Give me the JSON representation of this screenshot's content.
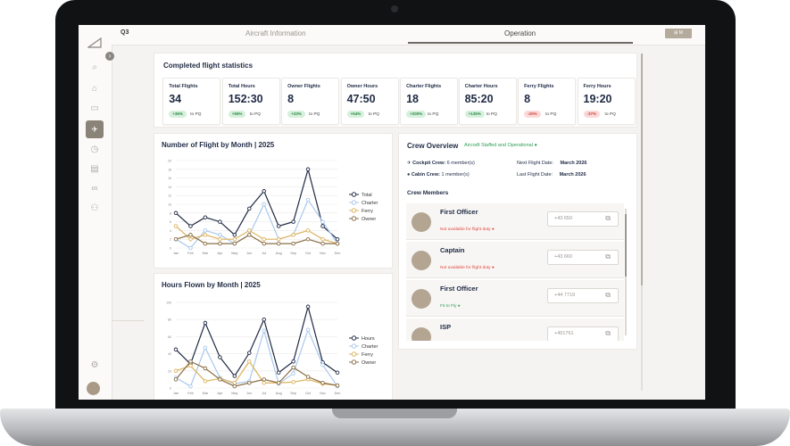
{
  "app": {
    "period": "Q3",
    "top_button": "⊞ M"
  },
  "tabs": [
    {
      "label": "Aircraft Information",
      "active": false
    },
    {
      "label": "Operation",
      "active": true
    }
  ],
  "sidebar": {
    "icons": [
      "search-icon",
      "home-icon",
      "calendar-icon",
      "aircraft-icon",
      "clock-icon",
      "document-icon",
      "link-icon",
      "people-icon",
      "settings-icon"
    ]
  },
  "stats": {
    "title": "Completed flight statistics",
    "cards": [
      {
        "label": "Total Flights",
        "value": "34",
        "delta": "+36%",
        "trend": "up",
        "suffix": "to PQ"
      },
      {
        "label": "Total Hours",
        "value": "152:30",
        "delta": "+55%",
        "trend": "up",
        "suffix": "to PQ"
      },
      {
        "label": "Owner Flights",
        "value": "8",
        "delta": "+33%",
        "trend": "up",
        "suffix": "to PQ"
      },
      {
        "label": "Owner Hours",
        "value": "47:50",
        "delta": "+54%",
        "trend": "up",
        "suffix": "to PQ"
      },
      {
        "label": "Charter Flights",
        "value": "18",
        "delta": "+200%",
        "trend": "up",
        "suffix": "to PQ"
      },
      {
        "label": "Charter Hours",
        "value": "85:20",
        "delta": "+135%",
        "trend": "up",
        "suffix": "to PQ"
      },
      {
        "label": "Ferry Flights",
        "value": "8",
        "delta": "-20%",
        "trend": "down",
        "suffix": "to PQ"
      },
      {
        "label": "Ferry Hours",
        "value": "19:20",
        "delta": "-37%",
        "trend": "down",
        "suffix": "to PQ"
      }
    ]
  },
  "chart_data": [
    {
      "type": "line",
      "title": "Number of Flight by Month | 2025",
      "categories": [
        "Jan",
        "Feb",
        "Mar",
        "Apr",
        "May",
        "Jun",
        "Jul",
        "Aug",
        "Sep",
        "Oct",
        "Nov",
        "Dec"
      ],
      "ylim": [
        0,
        20
      ],
      "yticks": [
        "0",
        "2",
        "4",
        "6",
        "8",
        "10",
        "12",
        "14",
        "16",
        "18",
        "20"
      ],
      "grid": true,
      "legend_position": "right",
      "series": [
        {
          "name": "Total",
          "color": "#1f2a44",
          "values": [
            8,
            5,
            7,
            6,
            3,
            9,
            13,
            5,
            6,
            18,
            5,
            2
          ]
        },
        {
          "name": "Charter",
          "color": "#a9c8ec",
          "values": [
            2,
            0,
            4,
            3,
            1,
            3,
            10,
            2,
            3,
            11,
            6,
            1
          ]
        },
        {
          "name": "Ferry",
          "color": "#dcb35c",
          "values": [
            5,
            2,
            3,
            2,
            2,
            4,
            2,
            2,
            3,
            4,
            2,
            1
          ]
        },
        {
          "name": "Owner",
          "color": "#8a6e46",
          "values": [
            2,
            3,
            1,
            1,
            1,
            3,
            1,
            1,
            1,
            2,
            1,
            1
          ]
        }
      ]
    },
    {
      "type": "line",
      "title": "Hours Flown by Month | 2025",
      "categories": [
        "Jan",
        "Feb",
        "Mar",
        "Apr",
        "May",
        "Jun",
        "Jul",
        "Aug",
        "Sep",
        "Oct",
        "Nov",
        "Dec"
      ],
      "ylim": [
        0,
        100
      ],
      "yticks": [
        "0",
        "20",
        "40",
        "60",
        "80",
        "100"
      ],
      "grid": true,
      "legend_position": "right",
      "series": [
        {
          "name": "Hours",
          "color": "#1f2a44",
          "values": [
            45,
            28,
            76,
            36,
            14,
            41,
            80,
            18,
            31,
            95,
            30,
            18
          ]
        },
        {
          "name": "Charter",
          "color": "#a9c8ec",
          "values": [
            12,
            2,
            47,
            12,
            5,
            8,
            67,
            5,
            17,
            68,
            27,
            2
          ]
        },
        {
          "name": "Ferry",
          "color": "#dcb35c",
          "values": [
            20,
            26,
            8,
            11,
            6,
            31,
            6,
            6,
            7,
            10,
            5,
            3
          ]
        },
        {
          "name": "Owner",
          "color": "#8a6e46",
          "values": [
            10,
            31,
            23,
            10,
            2,
            6,
            10,
            6,
            24,
            13,
            6,
            3
          ]
        }
      ]
    }
  ],
  "crew": {
    "title": "Crew Overview",
    "status": "Aircraft Staffed and Operational ●",
    "cockpit_label": "Cockpit Crew:",
    "cockpit_value": "6 member(s)",
    "cabin_label": "Cabin Crew:",
    "cabin_value": "1 member(s)",
    "next_label": "Next Flight Date:",
    "next_value": "March 2026",
    "last_label": "Last Flight Date:",
    "last_value": "March 2026",
    "members_title": "Crew Members",
    "members": [
      {
        "role": "First Officer",
        "status": "Not available for flight duty ●",
        "ok": false,
        "phone": "+43 650"
      },
      {
        "role": "Captain",
        "status": "Not available for flight duty ●",
        "ok": false,
        "phone": "+43 660"
      },
      {
        "role": "First Officer",
        "status": "Fit to Fly ●",
        "ok": true,
        "phone": "+44 7719"
      },
      {
        "role": "ISP",
        "status": "Fit to Fly ●",
        "ok": true,
        "phone": "+491761"
      }
    ]
  }
}
